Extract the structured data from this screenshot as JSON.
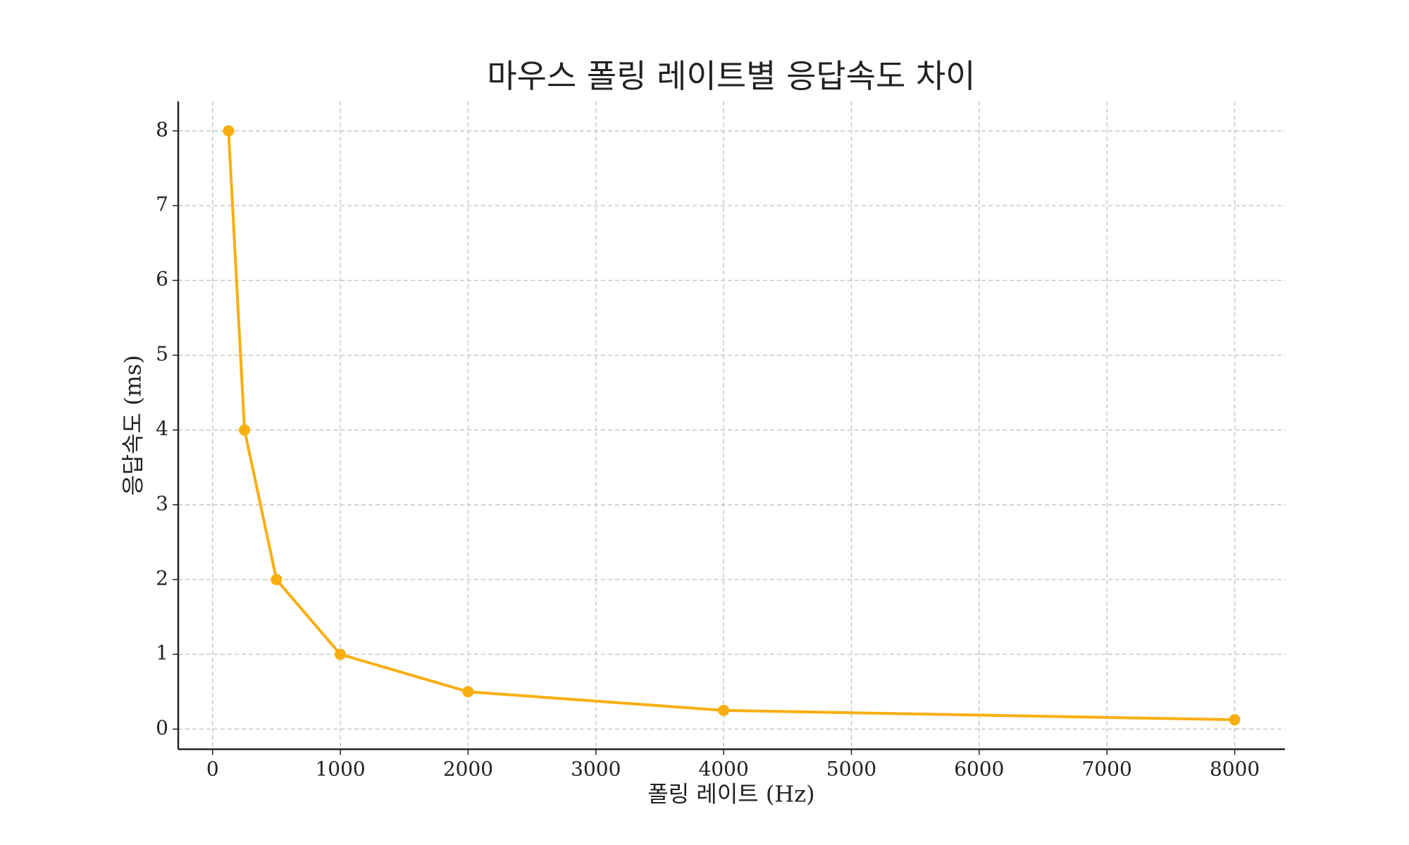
{
  "chart_data": {
    "type": "line",
    "title": "마우스 폴링 레이트별 응답속도 차이",
    "x_label": "폴링 레이트 (Hz)",
    "y_label": "응답속도 (ms)",
    "x": [
      125,
      250,
      500,
      1000,
      2000,
      4000,
      8000
    ],
    "series": [
      {
        "name": "응답속도",
        "color": "#f9ae0f",
        "values": [
          8,
          4,
          2,
          1,
          0.5,
          0.25,
          0.125
        ]
      }
    ],
    "xlim": [
      -268.75,
      8393.75
    ],
    "xticks": [
      0,
      1000,
      2000,
      3000,
      4000,
      5000,
      6000,
      7000,
      8000
    ],
    "ylim": [
      -0.269,
      8.394
    ],
    "yticks": [
      0,
      1,
      2,
      3,
      4,
      5,
      6,
      7,
      8
    ],
    "grid": true
  }
}
